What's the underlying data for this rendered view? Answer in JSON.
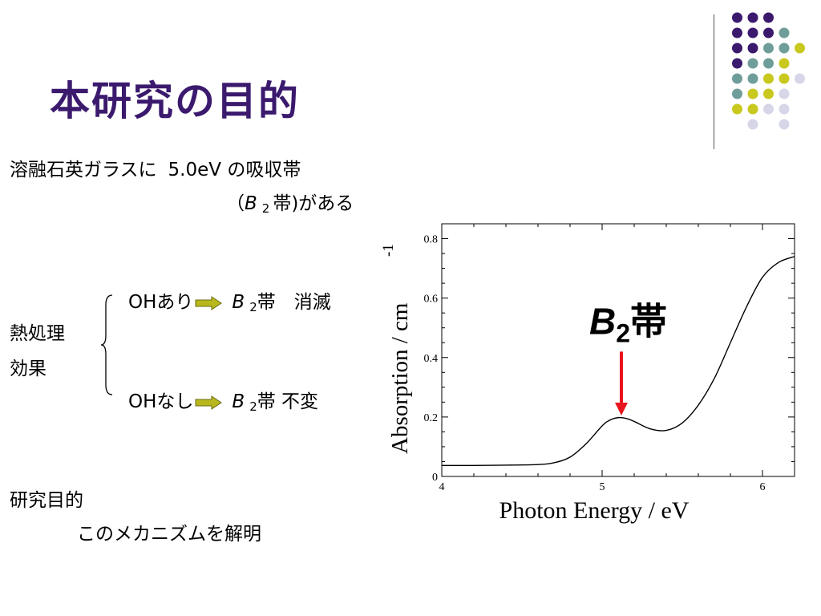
{
  "slide": {
    "title": "本研究の目的",
    "intro_line1_a": "溶融石英ガラスに",
    "intro_line1_b": "5.0eV の吸収帯",
    "intro_line2_open": "（",
    "intro_b": "B",
    "intro_sub": "2",
    "intro_line2_close": "帯)がある",
    "heat_label_1": "熱処理",
    "heat_label_2": "効果",
    "oh_yes": "OHあり",
    "oh_yes_b": "B",
    "oh_yes_sub": "2",
    "oh_yes_result": "帯　消滅",
    "oh_no": "OHなし",
    "oh_no_b": "B",
    "oh_no_sub": "2",
    "oh_no_result": "帯  不変",
    "purpose_label": "研究目的",
    "purpose_text": "このメカニズムを解明"
  },
  "colors": {
    "title": "#3b1a6e",
    "dot_purple": "#3b1a6e",
    "dot_teal": "#6f9e9a",
    "dot_yellow": "#c8c81e",
    "dot_lavender": "#d6d6e8",
    "arrow_fill": "#b8b81e",
    "annotation_arrow": "#e8141e"
  },
  "decor_icons": [
    "dot-grid-ornament",
    "right-arrow-icon",
    "curly-brace"
  ],
  "chart_data": {
    "type": "line",
    "xlabel": "Photon Energy / eV",
    "ylabel_main": "Absorption / cm",
    "ylabel_sup": "-1",
    "xlim": [
      4,
      6.2
    ],
    "ylim": [
      0,
      0.85
    ],
    "x_ticks": [
      4,
      5,
      6
    ],
    "x_tick_labels": [
      "4",
      "5",
      "6"
    ],
    "y_ticks": [
      0,
      0.2,
      0.4,
      0.6,
      0.8
    ],
    "y_tick_labels": [
      "0",
      "0.2",
      "0.4",
      "0.6",
      "0.8"
    ],
    "annotation_b": "B",
    "annotation_sub": "2",
    "annotation_suffix": "帯",
    "annotation_x": 5.12,
    "annotation_arrow_from": 0.42,
    "annotation_arrow_to": 0.205,
    "series": [
      {
        "x": [
          4.0,
          4.2,
          4.4,
          4.6,
          4.7,
          4.8,
          4.9,
          5.0,
          5.05,
          5.1,
          5.15,
          5.2,
          5.3,
          5.4,
          5.5,
          5.6,
          5.7,
          5.8,
          5.9,
          6.0,
          6.1,
          6.2
        ],
        "y": [
          0.037,
          0.037,
          0.038,
          0.04,
          0.046,
          0.065,
          0.11,
          0.17,
          0.19,
          0.198,
          0.195,
          0.185,
          0.16,
          0.155,
          0.18,
          0.24,
          0.33,
          0.45,
          0.57,
          0.67,
          0.72,
          0.74
        ]
      }
    ]
  }
}
